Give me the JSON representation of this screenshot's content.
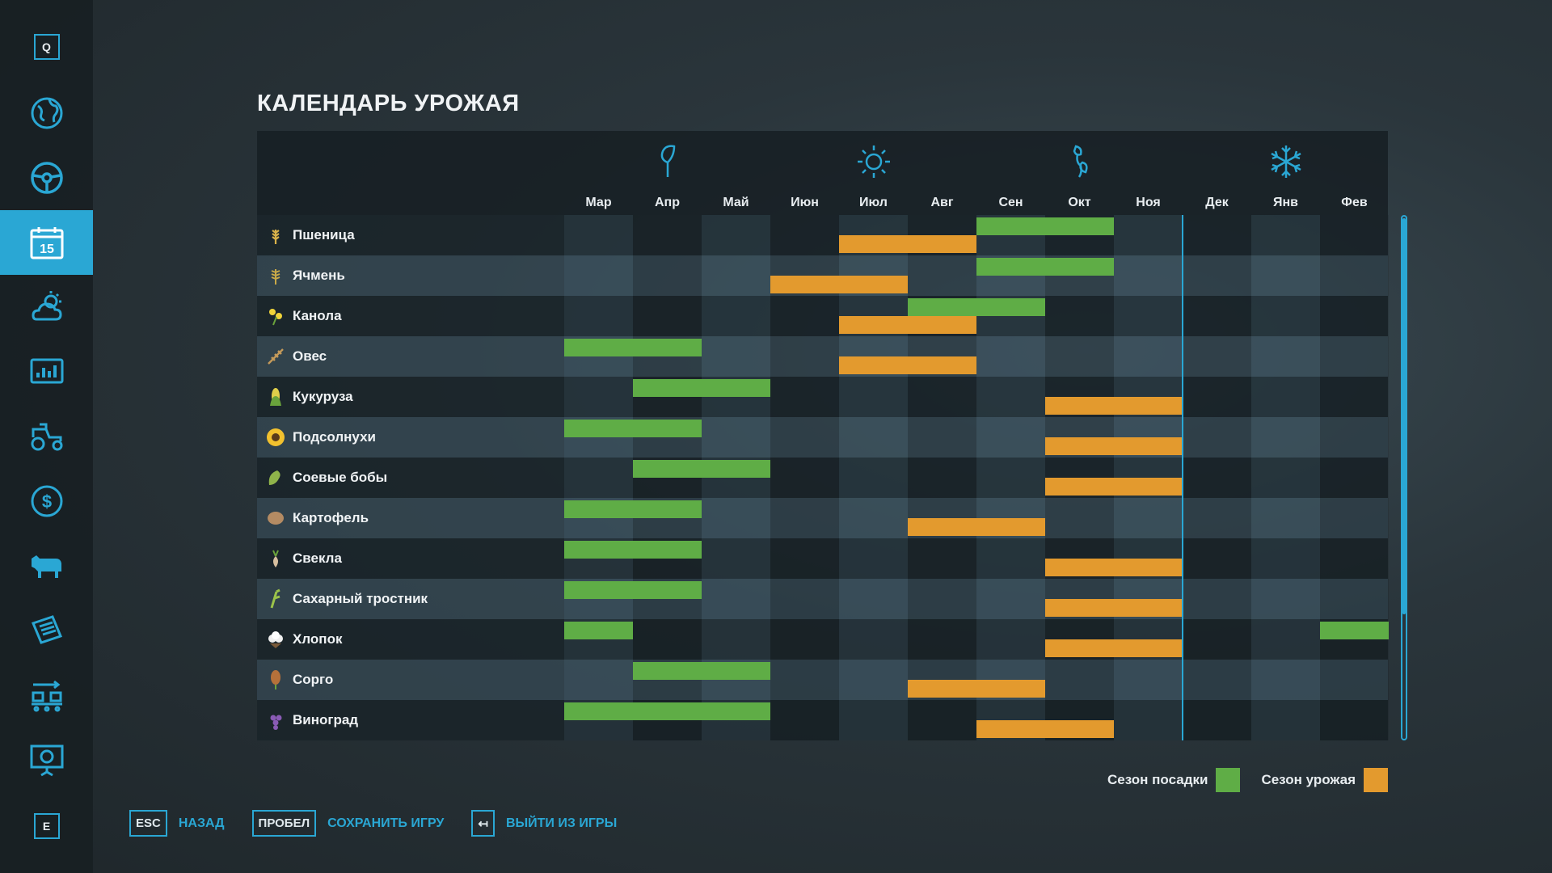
{
  "sidebar": {
    "top_key": "Q",
    "bottom_key": "E",
    "items": [
      {
        "icon": "globe-map-icon",
        "active": false
      },
      {
        "icon": "steering-wheel-icon",
        "active": false
      },
      {
        "icon": "calendar-icon",
        "label": "15",
        "active": true
      },
      {
        "icon": "weather-icon",
        "active": false
      },
      {
        "icon": "statistics-icon",
        "active": false
      },
      {
        "icon": "tractor-icon",
        "active": false
      },
      {
        "icon": "finance-dollar-icon",
        "active": false
      },
      {
        "icon": "animals-cow-icon",
        "active": false
      },
      {
        "icon": "contracts-icon",
        "active": false
      },
      {
        "icon": "production-icon",
        "active": false
      },
      {
        "icon": "help-presentation-icon",
        "active": false
      }
    ]
  },
  "page_title": "КАЛЕНДАРЬ УРОЖАЯ",
  "months": [
    "Мар",
    "Апр",
    "Май",
    "Июн",
    "Июл",
    "Авг",
    "Сен",
    "Окт",
    "Ноя",
    "Дек",
    "Янв",
    "Фев"
  ],
  "seasons": [
    {
      "icon": "spring-leaf-icon",
      "month_index": 1
    },
    {
      "icon": "summer-sun-icon",
      "month_index": 4
    },
    {
      "icon": "autumn-leaves-icon",
      "month_index": 7
    },
    {
      "icon": "winter-snowflake-icon",
      "month_index": 10
    }
  ],
  "current_month_marker_after_index": 8,
  "crops": [
    {
      "name": "Пшеница",
      "icon": "wheat-icon",
      "plant": [
        [
          6,
          8
        ]
      ],
      "harvest": [
        [
          4,
          6
        ]
      ]
    },
    {
      "name": "Ячмень",
      "icon": "barley-icon",
      "plant": [
        [
          6,
          8
        ]
      ],
      "harvest": [
        [
          3,
          5
        ]
      ]
    },
    {
      "name": "Канола",
      "icon": "canola-icon",
      "plant": [
        [
          5,
          7
        ]
      ],
      "harvest": [
        [
          4,
          6
        ]
      ]
    },
    {
      "name": "Овес",
      "icon": "oat-icon",
      "plant": [
        [
          0,
          2
        ]
      ],
      "harvest": [
        [
          4,
          6
        ]
      ]
    },
    {
      "name": "Кукуруза",
      "icon": "corn-icon",
      "plant": [
        [
          1,
          3
        ]
      ],
      "harvest": [
        [
          7,
          9
        ]
      ]
    },
    {
      "name": "Подсолнухи",
      "icon": "sunflower-icon",
      "plant": [
        [
          0,
          2
        ]
      ],
      "harvest": [
        [
          7,
          9
        ]
      ]
    },
    {
      "name": "Соевые бобы",
      "icon": "soybean-icon",
      "plant": [
        [
          1,
          3
        ]
      ],
      "harvest": [
        [
          7,
          9
        ]
      ]
    },
    {
      "name": "Картофель",
      "icon": "potato-icon",
      "plant": [
        [
          0,
          2
        ]
      ],
      "harvest": [
        [
          5,
          7
        ]
      ]
    },
    {
      "name": "Свекла",
      "icon": "sugarbeet-icon",
      "plant": [
        [
          0,
          2
        ]
      ],
      "harvest": [
        [
          7,
          9
        ]
      ]
    },
    {
      "name": "Сахарный тростник",
      "icon": "sugarcane-icon",
      "plant": [
        [
          0,
          2
        ]
      ],
      "harvest": [
        [
          7,
          9
        ]
      ]
    },
    {
      "name": "Хлопок",
      "icon": "cotton-icon",
      "plant": [
        [
          0,
          1
        ],
        [
          11,
          12
        ]
      ],
      "harvest": [
        [
          7,
          9
        ]
      ]
    },
    {
      "name": "Сорго",
      "icon": "sorghum-icon",
      "plant": [
        [
          1,
          3
        ]
      ],
      "harvest": [
        [
          5,
          7
        ]
      ]
    },
    {
      "name": "Виноград",
      "icon": "grape-icon",
      "plant": [
        [
          0,
          3
        ]
      ],
      "harvest": [
        [
          6,
          8
        ]
      ]
    }
  ],
  "legend": {
    "planting": "Сезон посадки",
    "harvest": "Сезон урожая"
  },
  "colors": {
    "accent": "#2aa7d4",
    "planting": "#5fad46",
    "harvest": "#e39a2e"
  },
  "footer": {
    "back_key": "ESC",
    "back_label": "НАЗАД",
    "save_key": "ПРОБЕЛ",
    "save_label": "СОХРАНИТЬ ИГРУ",
    "exit_key": "↤",
    "exit_label": "ВЫЙТИ ИЗ ИГРЫ"
  }
}
